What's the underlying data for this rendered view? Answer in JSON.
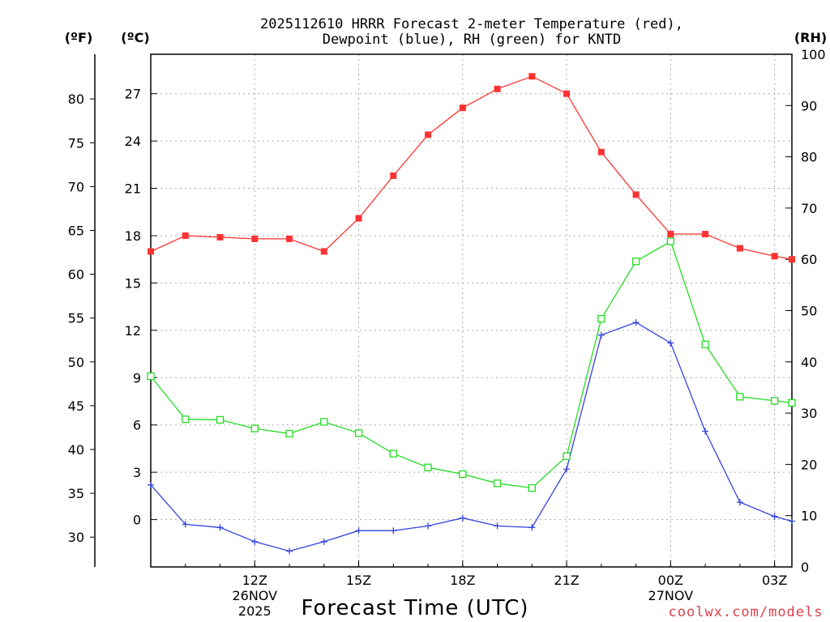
{
  "chart_data": {
    "type": "line",
    "title_line1": "2025112610 HRRR Forecast 2-meter Temperature (red),",
    "title_line2": "Dewpoint (blue), RH (green) for KNTD",
    "xlabel": "Forecast Time (UTC)",
    "credit": "coolwx.com/models",
    "units": {
      "fahrenheit": "(ºF)",
      "celsius": "(ºC)",
      "rh": "(RH)"
    },
    "x_hours": [
      9,
      10,
      11,
      12,
      13,
      14,
      15,
      16,
      17,
      18,
      19,
      20,
      21,
      22,
      23,
      24,
      25,
      26,
      27,
      27.5
    ],
    "x_range": [
      9,
      27.5
    ],
    "x_ticks": [
      {
        "hour": 12,
        "label": "12Z",
        "sub1": "26NOV",
        "sub2": "2025"
      },
      {
        "hour": 15,
        "label": "15Z",
        "sub1": "",
        "sub2": ""
      },
      {
        "hour": 18,
        "label": "18Z",
        "sub1": "",
        "sub2": ""
      },
      {
        "hour": 21,
        "label": "21Z",
        "sub1": "",
        "sub2": ""
      },
      {
        "hour": 24,
        "label": "00Z",
        "sub1": "27NOV",
        "sub2": ""
      },
      {
        "hour": 27,
        "label": "03Z",
        "sub1": "",
        "sub2": ""
      }
    ],
    "celsius_range": [
      -3,
      29.5
    ],
    "celsius_ticks": [
      0,
      3,
      6,
      9,
      12,
      15,
      18,
      21,
      24,
      27
    ],
    "fahrenheit_ticks": [
      30,
      35,
      40,
      45,
      50,
      55,
      60,
      65,
      70,
      75,
      80
    ],
    "rh_range": [
      0,
      100
    ],
    "rh_ticks": [
      0,
      10,
      20,
      30,
      40,
      50,
      60,
      70,
      80,
      90,
      100
    ],
    "series": [
      {
        "name": "Temperature",
        "axis": "celsius",
        "color": "#ff3333",
        "marker": "filled-square",
        "values": [
          17.0,
          18.0,
          17.9,
          17.8,
          17.8,
          17.0,
          19.1,
          21.8,
          24.4,
          26.1,
          27.3,
          28.1,
          27.0,
          23.3,
          20.6,
          18.1,
          18.1,
          17.2,
          16.7,
          16.5
        ]
      },
      {
        "name": "Dewpoint",
        "axis": "celsius",
        "color": "#3344dd",
        "marker": "plus",
        "values": [
          2.2,
          -0.3,
          -0.5,
          -1.4,
          -2.0,
          -1.4,
          -0.7,
          -0.7,
          -0.4,
          0.1,
          -0.4,
          -0.5,
          3.2,
          11.7,
          12.5,
          11.2,
          5.6,
          1.1,
          0.2,
          -0.1
        ]
      },
      {
        "name": "RH",
        "axis": "rh",
        "color": "#22dd22",
        "marker": "open-square",
        "values": [
          37.2,
          28.8,
          28.7,
          27.0,
          26.0,
          28.3,
          26.1,
          22.1,
          19.4,
          18.1,
          16.3,
          15.4,
          21.6,
          48.4,
          59.6,
          63.5,
          43.4,
          33.2,
          32.4,
          32.0
        ]
      }
    ]
  }
}
